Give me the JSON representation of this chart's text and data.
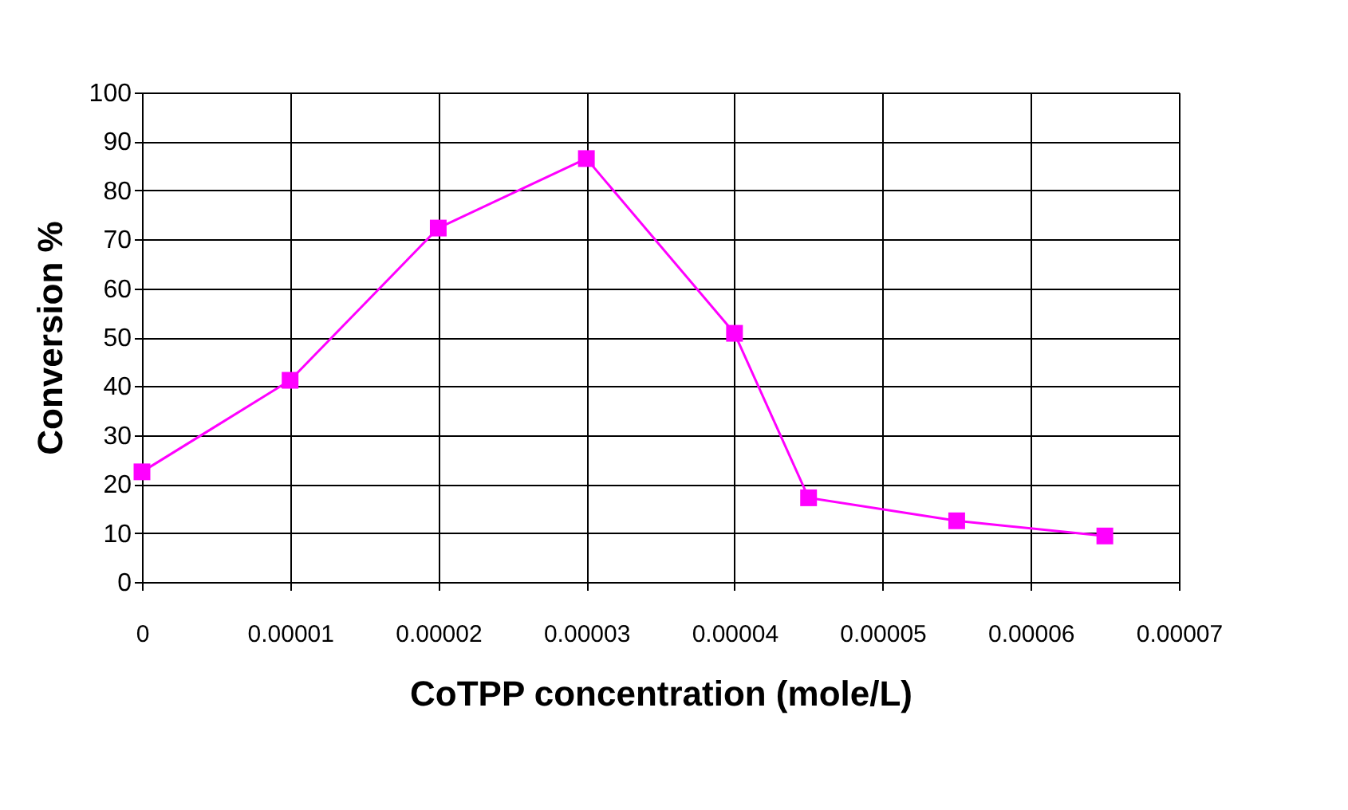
{
  "chart_data": {
    "type": "line",
    "xlabel": "CoTPP concentration (mole/L)",
    "ylabel": "Conversion %",
    "x": [
      0,
      1e-05,
      2e-05,
      3e-05,
      4e-05,
      4.5e-05,
      5.5e-05,
      6.5e-05
    ],
    "series": [
      {
        "color": "#ff00ff",
        "values": [
          22.5,
          41.2,
          72.3,
          86.5,
          50.8,
          17.2,
          12.5,
          9.4
        ]
      }
    ],
    "xlim": [
      0,
      7e-05
    ],
    "xticks": [
      0,
      {
        "value": 1e-05,
        "label": "0.00001"
      },
      {
        "value": 2e-05,
        "label": "0.00002"
      },
      {
        "value": 3e-05,
        "label": "0.00003"
      },
      {
        "value": 4e-05,
        "label": "0.00004"
      },
      {
        "value": 5e-05,
        "label": "0.00005"
      },
      {
        "value": 6e-05,
        "label": "0.00006"
      },
      {
        "value": 7e-05,
        "label": "0.00007"
      }
    ],
    "ylim": [
      0,
      100
    ],
    "yticks": [
      0,
      10,
      20,
      30,
      40,
      50,
      60,
      70,
      80,
      90,
      100
    ],
    "grid": true,
    "marker": "square",
    "line_style": "solid",
    "legend": false
  }
}
